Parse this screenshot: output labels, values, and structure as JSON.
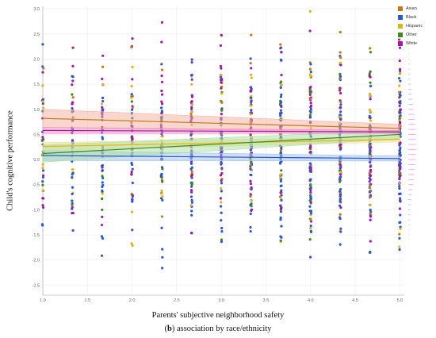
{
  "chart_data": {
    "type": "scatter",
    "xlabel": "Parents' subjective neighborhood safety",
    "ylabel": "Child's cognitive performance",
    "caption_letter": "b",
    "caption_text": "association by race/ethnicity",
    "xlim": [
      1.0,
      5.05
    ],
    "ylim": [
      -2.7,
      3.05
    ],
    "x_ticks": [
      1.0,
      1.5,
      2.0,
      2.5,
      3.0,
      3.5,
      4.0,
      4.5,
      5.0
    ],
    "x_tick_labels": [
      "1.0",
      "1.5",
      "2.0",
      "2.5",
      "3.0",
      "3.5",
      "4.0",
      "4.5",
      "5.0"
    ],
    "y_ticks": [
      3.0,
      2.5,
      2.0,
      1.5,
      1.0,
      0.5,
      0.0,
      -0.5,
      -1.0,
      -1.5,
      -2.0,
      -2.5
    ],
    "y_tick_labels": [
      "3.0",
      "2.5",
      "2.0",
      "1.5",
      "1.0",
      "0.5",
      "0.0",
      "-0.5",
      "-1.0",
      "-1.5",
      "-2.0",
      "-2.5"
    ],
    "x_levels": [
      1.0,
      1.333,
      1.667,
      2.0,
      2.333,
      2.667,
      3.0,
      3.333,
      3.667,
      4.0,
      4.333,
      4.667,
      5.0
    ],
    "grid": true,
    "legend_position": "top-right",
    "series": [
      {
        "name": "Asian",
        "color": "#c07a1a",
        "band_color": "#f4b0a0",
        "fit": {
          "x": [
            1.0,
            5.0
          ],
          "y": [
            0.82,
            0.62
          ]
        },
        "band": {
          "lower": [
            0.64,
            0.54
          ],
          "upper": [
            1.0,
            0.7
          ]
        }
      },
      {
        "name": "Black",
        "color": "#2d58c8",
        "band_color": "#9ec0f0",
        "fit": {
          "x": [
            1.0,
            5.0
          ],
          "y": [
            0.08,
            0.02
          ]
        },
        "band": {
          "lower": [
            -0.02,
            -0.03
          ],
          "upper": [
            0.18,
            0.07
          ]
        }
      },
      {
        "name": "Hispanic",
        "color": "#e3b11a",
        "band_color": "#f2e08a",
        "fit": {
          "x": [
            1.0,
            5.0
          ],
          "y": [
            0.26,
            0.4
          ]
        },
        "band": {
          "lower": [
            0.18,
            0.35
          ],
          "upper": [
            0.34,
            0.45
          ]
        }
      },
      {
        "name": "Other",
        "color": "#3e8a1e",
        "band_color": "#a8e0a0",
        "fit": {
          "x": [
            1.0,
            5.0
          ],
          "y": [
            0.12,
            0.5
          ]
        },
        "band": {
          "lower": [
            -0.05,
            0.42
          ],
          "upper": [
            0.29,
            0.58
          ]
        }
      },
      {
        "name": "White",
        "color": "#9c1aa8",
        "band_color": "#f088c0",
        "fit": {
          "x": [
            1.0,
            5.0
          ],
          "y": [
            0.58,
            0.55
          ]
        },
        "band": {
          "lower": [
            0.52,
            0.52
          ],
          "upper": [
            0.64,
            0.58
          ]
        }
      }
    ]
  }
}
